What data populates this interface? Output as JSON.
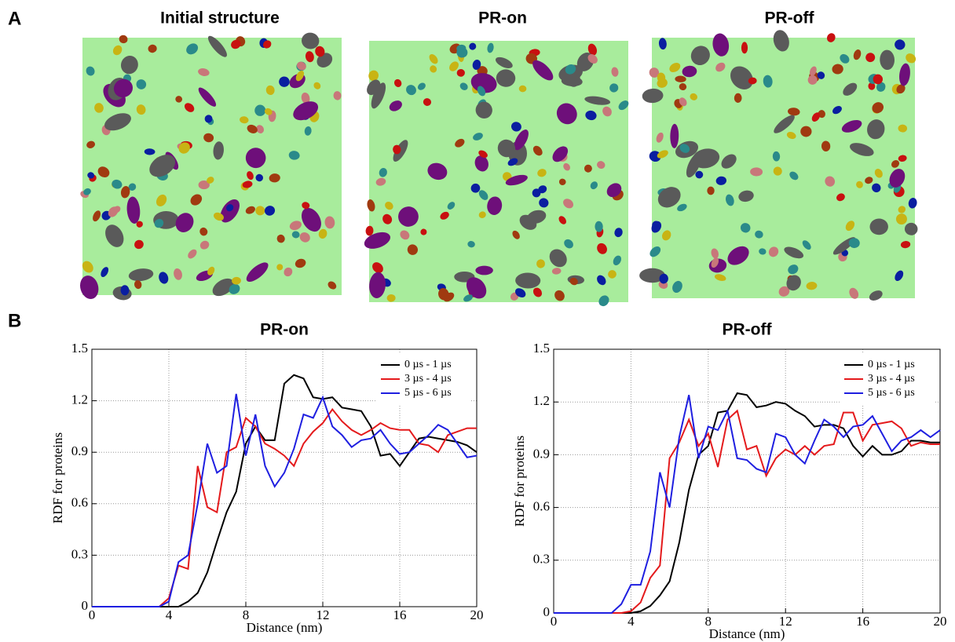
{
  "panel_a": {
    "label": "A",
    "titles": [
      "Initial structure",
      "PR-on",
      "PR-off"
    ]
  },
  "panel_b": {
    "label": "B"
  },
  "chart_data": [
    {
      "type": "line",
      "title": "PR-on",
      "xlabel": "Distance (nm)",
      "ylabel": "RDF for proteins",
      "x": [
        0,
        0.5,
        1,
        1.5,
        2,
        2.5,
        3,
        3.5,
        4,
        4.5,
        5,
        5.5,
        6,
        6.5,
        7,
        7.5,
        8,
        8.5,
        9,
        9.5,
        10,
        10.5,
        11,
        11.5,
        12,
        12.5,
        13,
        13.5,
        14,
        14.5,
        15,
        15.5,
        16,
        16.5,
        17,
        17.5,
        18,
        18.5,
        19,
        19.5,
        20
      ],
      "xlim": [
        0,
        20
      ],
      "xticks": [
        0,
        4,
        8,
        12,
        16,
        20
      ],
      "ylim": [
        0,
        1.5
      ],
      "yticks": [
        0,
        0.3,
        0.6,
        0.9,
        1.2,
        1.5
      ],
      "grid": true,
      "legend": "upper right",
      "series": [
        {
          "name": "0 µs - 1 µs",
          "color": "#000000",
          "values": [
            0,
            0,
            0,
            0,
            0,
            0,
            0,
            0,
            0,
            0,
            0.03,
            0.08,
            0.2,
            0.38,
            0.55,
            0.67,
            0.95,
            1.05,
            0.97,
            0.97,
            1.3,
            1.35,
            1.33,
            1.22,
            1.21,
            1.22,
            1.16,
            1.15,
            1.14,
            1.05,
            0.88,
            0.89,
            0.82,
            0.9,
            0.98,
            0.99,
            0.98,
            0.97,
            0.96,
            0.94,
            0.9
          ]
        },
        {
          "name": "3 µs - 4 µs",
          "color": "#e41a1c",
          "values": [
            0,
            0,
            0,
            0,
            0,
            0,
            0,
            0,
            0.05,
            0.24,
            0.22,
            0.82,
            0.58,
            0.55,
            0.9,
            0.93,
            1.1,
            1.05,
            0.95,
            0.92,
            0.88,
            0.82,
            0.95,
            1.02,
            1.07,
            1.15,
            1.08,
            1.03,
            1.0,
            1.03,
            1.07,
            1.04,
            1.03,
            1.03,
            0.95,
            0.94,
            0.9,
            1.0,
            1.02,
            1.04,
            1.04
          ]
        },
        {
          "name": "5 µs - 6 µs",
          "color": "#1f1fe0",
          "values": [
            0,
            0,
            0,
            0,
            0,
            0,
            0,
            0,
            0.03,
            0.26,
            0.3,
            0.6,
            0.95,
            0.78,
            0.82,
            1.24,
            0.88,
            1.12,
            0.82,
            0.7,
            0.78,
            0.92,
            1.12,
            1.1,
            1.22,
            1.05,
            1.0,
            0.93,
            0.97,
            0.98,
            1.03,
            0.95,
            0.89,
            0.9,
            0.95,
            1.0,
            1.06,
            1.03,
            0.95,
            0.87,
            0.88
          ]
        }
      ]
    },
    {
      "type": "line",
      "title": "PR-off",
      "xlabel": "Distance (nm)",
      "ylabel": "RDF for proteins",
      "x": [
        0,
        0.5,
        1,
        1.5,
        2,
        2.5,
        3,
        3.5,
        4,
        4.5,
        5,
        5.5,
        6,
        6.5,
        7,
        7.5,
        8,
        8.5,
        9,
        9.5,
        10,
        10.5,
        11,
        11.5,
        12,
        12.5,
        13,
        13.5,
        14,
        14.5,
        15,
        15.5,
        16,
        16.5,
        17,
        17.5,
        18,
        18.5,
        19,
        19.5,
        20
      ],
      "xlim": [
        0,
        20
      ],
      "xticks": [
        0,
        4,
        8,
        12,
        16,
        20
      ],
      "ylim": [
        0,
        1.5
      ],
      "yticks": [
        0,
        0.3,
        0.6,
        0.9,
        1.2,
        1.5
      ],
      "grid": true,
      "legend": "upper right",
      "series": [
        {
          "name": "0 µs - 1 µs",
          "color": "#000000",
          "values": [
            0,
            0,
            0,
            0,
            0,
            0,
            0,
            0,
            0,
            0.01,
            0.04,
            0.1,
            0.18,
            0.4,
            0.7,
            0.9,
            0.95,
            1.14,
            1.15,
            1.25,
            1.24,
            1.17,
            1.18,
            1.2,
            1.19,
            1.15,
            1.12,
            1.06,
            1.07,
            1.07,
            1.05,
            0.95,
            0.89,
            0.95,
            0.9,
            0.9,
            0.92,
            0.98,
            0.98,
            0.97,
            0.97
          ]
        },
        {
          "name": "3 µs - 4 µs",
          "color": "#e41a1c",
          "values": [
            0,
            0,
            0,
            0,
            0,
            0,
            0,
            0,
            0.01,
            0.06,
            0.2,
            0.27,
            0.88,
            0.97,
            1.1,
            0.95,
            1.02,
            0.83,
            1.1,
            1.15,
            0.93,
            0.95,
            0.78,
            0.88,
            0.93,
            0.9,
            0.95,
            0.9,
            0.95,
            0.96,
            1.14,
            1.14,
            0.98,
            1.07,
            1.08,
            1.09,
            1.05,
            0.95,
            0.97,
            0.96,
            0.96
          ]
        },
        {
          "name": "5 µs - 6 µs",
          "color": "#1f1fe0",
          "values": [
            0,
            0,
            0,
            0,
            0,
            0,
            0,
            0.05,
            0.16,
            0.16,
            0.35,
            0.8,
            0.6,
            1.0,
            1.24,
            0.88,
            1.06,
            1.04,
            1.15,
            0.88,
            0.87,
            0.82,
            0.8,
            1.02,
            1.0,
            0.9,
            0.85,
            0.98,
            1.1,
            1.06,
            1.0,
            1.06,
            1.07,
            1.12,
            1.02,
            0.92,
            0.98,
            1.0,
            1.04,
            1.0,
            1.04
          ]
        }
      ]
    }
  ]
}
